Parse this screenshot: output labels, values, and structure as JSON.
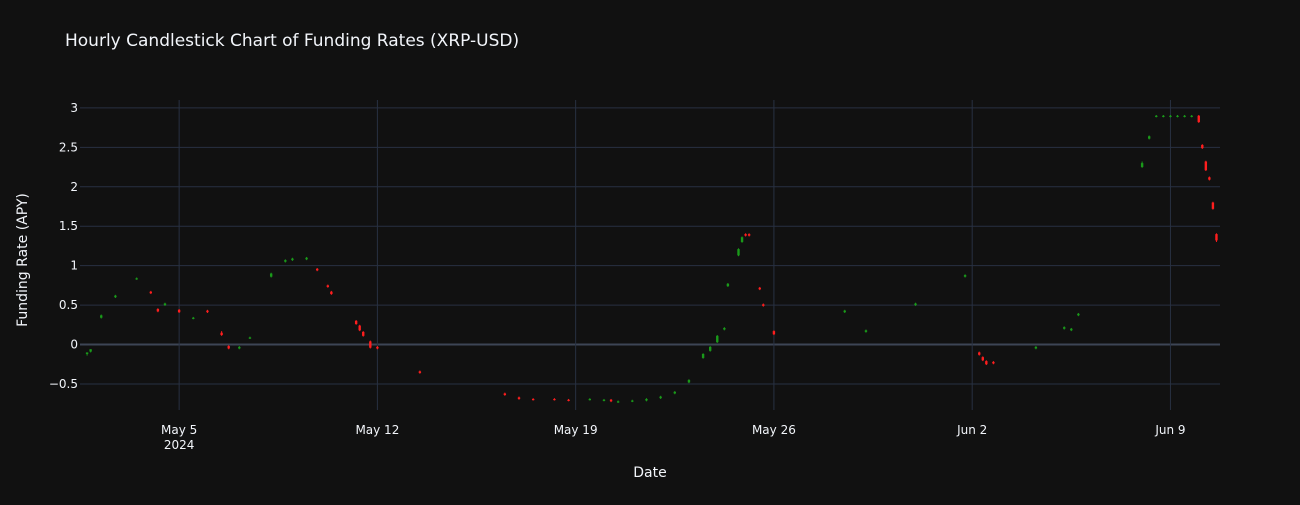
{
  "chart_data": {
    "type": "candlestick",
    "title": "Hourly Candlestick Chart of Funding Rates (XRP-USD)",
    "xlabel": "Date",
    "ylabel": "Funding Rate (APY)",
    "x_tick_labels": [
      {
        "value": "2024-05-05",
        "label": "May 5",
        "sublabel": "2024"
      },
      {
        "value": "2024-05-12",
        "label": "May 12",
        "sublabel": ""
      },
      {
        "value": "2024-05-19",
        "label": "May 19",
        "sublabel": ""
      },
      {
        "value": "2024-05-26",
        "label": "May 26",
        "sublabel": ""
      },
      {
        "value": "2024-06-02",
        "label": "Jun 2",
        "sublabel": ""
      },
      {
        "value": "2024-06-09",
        "label": "Jun 9",
        "sublabel": ""
      }
    ],
    "y_ticks": [
      {
        "value": -0.5,
        "label": "−0.5"
      },
      {
        "value": 0,
        "label": "0"
      },
      {
        "value": 0.5,
        "label": "0.5"
      },
      {
        "value": 1,
        "label": "1"
      },
      {
        "value": 1.5,
        "label": "1.5"
      },
      {
        "value": 2,
        "label": "2"
      },
      {
        "value": 2.5,
        "label": "2.5"
      },
      {
        "value": 3,
        "label": "3"
      }
    ],
    "xlim": [
      "2024-05-01T12:00",
      "2024-06-10T18:00"
    ],
    "ylim": [
      -0.83,
      3.1
    ],
    "grid": true,
    "legend": "none",
    "colors": {
      "increasing": "#1a9a1a",
      "decreasing": "#ff1e1e",
      "grid": "#283142",
      "zero_line": "#3d4555"
    },
    "candles": [
      {
        "t": "2024-05-01T18:00",
        "o": -0.12,
        "h": -0.1,
        "l": -0.14,
        "c": -0.1
      },
      {
        "t": "2024-05-01T21:00",
        "o": -0.09,
        "h": -0.06,
        "l": -0.1,
        "c": -0.06
      },
      {
        "t": "2024-05-02T06:00",
        "o": 0.34,
        "h": 0.38,
        "l": 0.33,
        "c": 0.37
      },
      {
        "t": "2024-05-02T18:00",
        "o": 0.6,
        "h": 0.63,
        "l": 0.59,
        "c": 0.62
      },
      {
        "t": "2024-05-03T12:00",
        "o": 0.83,
        "h": 0.85,
        "l": 0.82,
        "c": 0.84
      },
      {
        "t": "2024-05-04T00:00",
        "o": 0.67,
        "h": 0.68,
        "l": 0.64,
        "c": 0.65
      },
      {
        "t": "2024-05-04T06:00",
        "o": 0.45,
        "h": 0.46,
        "l": 0.41,
        "c": 0.42
      },
      {
        "t": "2024-05-04T12:00",
        "o": 0.5,
        "h": 0.53,
        "l": 0.49,
        "c": 0.52
      },
      {
        "t": "2024-05-05T00:00",
        "o": 0.44,
        "h": 0.45,
        "l": 0.4,
        "c": 0.41
      },
      {
        "t": "2024-05-05T12:00",
        "o": 0.33,
        "h": 0.35,
        "l": 0.32,
        "c": 0.34
      },
      {
        "t": "2024-05-06T00:00",
        "o": 0.43,
        "h": 0.44,
        "l": 0.4,
        "c": 0.41
      },
      {
        "t": "2024-05-06T12:00",
        "o": 0.15,
        "h": 0.17,
        "l": 0.11,
        "c": 0.12
      },
      {
        "t": "2024-05-06T18:00",
        "o": -0.02,
        "h": -0.01,
        "l": -0.06,
        "c": -0.05
      },
      {
        "t": "2024-05-07T03:00",
        "o": -0.05,
        "h": -0.02,
        "l": -0.06,
        "c": -0.03
      },
      {
        "t": "2024-05-07T12:00",
        "o": 0.08,
        "h": 0.1,
        "l": 0.07,
        "c": 0.09
      },
      {
        "t": "2024-05-08T06:00",
        "o": 0.86,
        "h": 0.91,
        "l": 0.85,
        "c": 0.9
      },
      {
        "t": "2024-05-08T18:00",
        "o": 1.05,
        "h": 1.08,
        "l": 1.04,
        "c": 1.07
      },
      {
        "t": "2024-05-09T00:00",
        "o": 1.07,
        "h": 1.1,
        "l": 1.06,
        "c": 1.09
      },
      {
        "t": "2024-05-09T12:00",
        "o": 1.08,
        "h": 1.11,
        "l": 1.07,
        "c": 1.1
      },
      {
        "t": "2024-05-09T21:00",
        "o": 0.96,
        "h": 0.97,
        "l": 0.93,
        "c": 0.94
      },
      {
        "t": "2024-05-10T06:00",
        "o": 0.75,
        "h": 0.76,
        "l": 0.72,
        "c": 0.73
      },
      {
        "t": "2024-05-10T09:00",
        "o": 0.67,
        "h": 0.68,
        "l": 0.63,
        "c": 0.64
      },
      {
        "t": "2024-05-11T06:00",
        "o": 0.3,
        "h": 0.31,
        "l": 0.25,
        "c": 0.26
      },
      {
        "t": "2024-05-11T09:00",
        "o": 0.24,
        "h": 0.25,
        "l": 0.17,
        "c": 0.18
      },
      {
        "t": "2024-05-11T12:00",
        "o": 0.16,
        "h": 0.17,
        "l": 0.1,
        "c": 0.11
      },
      {
        "t": "2024-05-11T18:00",
        "o": 0.04,
        "h": 0.05,
        "l": -0.05,
        "c": -0.04
      },
      {
        "t": "2024-05-12T00:00",
        "o": -0.03,
        "h": -0.02,
        "l": -0.06,
        "c": -0.05
      },
      {
        "t": "2024-05-13T12:00",
        "o": -0.34,
        "h": -0.33,
        "l": -0.37,
        "c": -0.36
      },
      {
        "t": "2024-05-16T12:00",
        "o": -0.62,
        "h": -0.61,
        "l": -0.65,
        "c": -0.64
      },
      {
        "t": "2024-05-17T00:00",
        "o": -0.67,
        "h": -0.66,
        "l": -0.7,
        "c": -0.69
      },
      {
        "t": "2024-05-17T12:00",
        "o": -0.69,
        "h": -0.68,
        "l": -0.71,
        "c": -0.7
      },
      {
        "t": "2024-05-18T06:00",
        "o": -0.69,
        "h": -0.68,
        "l": -0.71,
        "c": -0.7
      },
      {
        "t": "2024-05-18T18:00",
        "o": -0.7,
        "h": -0.69,
        "l": -0.72,
        "c": -0.71
      },
      {
        "t": "2024-05-19T12:00",
        "o": -0.7,
        "h": -0.68,
        "l": -0.71,
        "c": -0.69
      },
      {
        "t": "2024-05-20T00:00",
        "o": -0.71,
        "h": -0.69,
        "l": -0.72,
        "c": -0.7
      },
      {
        "t": "2024-05-20T06:00",
        "o": -0.7,
        "h": -0.69,
        "l": -0.73,
        "c": -0.72
      },
      {
        "t": "2024-05-20T12:00",
        "o": -0.73,
        "h": -0.71,
        "l": -0.74,
        "c": -0.72
      },
      {
        "t": "2024-05-21T00:00",
        "o": -0.72,
        "h": -0.7,
        "l": -0.73,
        "c": -0.71
      },
      {
        "t": "2024-05-21T12:00",
        "o": -0.71,
        "h": -0.68,
        "l": -0.72,
        "c": -0.69
      },
      {
        "t": "2024-05-22T00:00",
        "o": -0.68,
        "h": -0.65,
        "l": -0.69,
        "c": -0.66
      },
      {
        "t": "2024-05-22T12:00",
        "o": -0.62,
        "h": -0.59,
        "l": -0.63,
        "c": -0.6
      },
      {
        "t": "2024-05-23T00:00",
        "o": -0.48,
        "h": -0.44,
        "l": -0.49,
        "c": -0.45
      },
      {
        "t": "2024-05-23T12:00",
        "o": -0.17,
        "h": -0.11,
        "l": -0.18,
        "c": -0.12
      },
      {
        "t": "2024-05-23T18:00",
        "o": -0.08,
        "h": -0.02,
        "l": -0.09,
        "c": -0.03
      },
      {
        "t": "2024-05-24T00:00",
        "o": 0.03,
        "h": 0.12,
        "l": 0.02,
        "c": 0.11
      },
      {
        "t": "2024-05-24T06:00",
        "o": 0.19,
        "h": 0.22,
        "l": 0.18,
        "c": 0.21
      },
      {
        "t": "2024-05-24T09:00",
        "o": 0.74,
        "h": 0.78,
        "l": 0.73,
        "c": 0.77
      },
      {
        "t": "2024-05-24T18:00",
        "o": 1.13,
        "h": 1.22,
        "l": 1.12,
        "c": 1.21
      },
      {
        "t": "2024-05-24T21:00",
        "o": 1.3,
        "h": 1.37,
        "l": 1.29,
        "c": 1.36
      },
      {
        "t": "2024-05-25T00:00",
        "o": 1.4,
        "h": 1.41,
        "l": 1.37,
        "c": 1.38
      },
      {
        "t": "2024-05-25T03:00",
        "o": 1.4,
        "h": 1.41,
        "l": 1.37,
        "c": 1.38
      },
      {
        "t": "2024-05-25T12:00",
        "o": 0.72,
        "h": 0.73,
        "l": 0.69,
        "c": 0.7
      },
      {
        "t": "2024-05-25T15:00",
        "o": 0.51,
        "h": 0.52,
        "l": 0.48,
        "c": 0.49
      },
      {
        "t": "2024-05-26T00:00",
        "o": 0.17,
        "h": 0.18,
        "l": 0.12,
        "c": 0.13
      },
      {
        "t": "2024-05-28T12:00",
        "o": 0.41,
        "h": 0.44,
        "l": 0.4,
        "c": 0.43
      },
      {
        "t": "2024-05-29T06:00",
        "o": 0.16,
        "h": 0.19,
        "l": 0.15,
        "c": 0.18
      },
      {
        "t": "2024-05-31T00:00",
        "o": 0.5,
        "h": 0.53,
        "l": 0.49,
        "c": 0.52
      },
      {
        "t": "2024-06-01T18:00",
        "o": 0.86,
        "h": 0.89,
        "l": 0.85,
        "c": 0.88
      },
      {
        "t": "2024-06-02T06:00",
        "o": -0.1,
        "h": -0.09,
        "l": -0.14,
        "c": -0.13
      },
      {
        "t": "2024-06-02T09:00",
        "o": -0.16,
        "h": -0.15,
        "l": -0.21,
        "c": -0.2
      },
      {
        "t": "2024-06-02T12:00",
        "o": -0.21,
        "h": -0.2,
        "l": -0.26,
        "c": -0.25
      },
      {
        "t": "2024-06-02T18:00",
        "o": -0.22,
        "h": -0.21,
        "l": -0.25,
        "c": -0.24
      },
      {
        "t": "2024-06-04T06:00",
        "o": -0.05,
        "h": -0.02,
        "l": -0.06,
        "c": -0.03
      },
      {
        "t": "2024-06-05T06:00",
        "o": 0.2,
        "h": 0.23,
        "l": 0.19,
        "c": 0.22
      },
      {
        "t": "2024-06-05T12:00",
        "o": 0.18,
        "h": 0.21,
        "l": 0.17,
        "c": 0.2
      },
      {
        "t": "2024-06-05T18:00",
        "o": 0.37,
        "h": 0.4,
        "l": 0.36,
        "c": 0.39
      },
      {
        "t": "2024-06-08T00:00",
        "o": 2.25,
        "h": 2.32,
        "l": 2.24,
        "c": 2.3
      },
      {
        "t": "2024-06-08T06:00",
        "o": 2.61,
        "h": 2.65,
        "l": 2.6,
        "c": 2.64
      },
      {
        "t": "2024-06-08T12:00",
        "o": 2.89,
        "h": 2.91,
        "l": 2.88,
        "c": 2.9
      },
      {
        "t": "2024-06-08T18:00",
        "o": 2.89,
        "h": 2.91,
        "l": 2.88,
        "c": 2.9
      },
      {
        "t": "2024-06-09T00:00",
        "o": 2.89,
        "h": 2.91,
        "l": 2.88,
        "c": 2.9
      },
      {
        "t": "2024-06-09T06:00",
        "o": 2.89,
        "h": 2.91,
        "l": 2.88,
        "c": 2.9
      },
      {
        "t": "2024-06-09T12:00",
        "o": 2.89,
        "h": 2.91,
        "l": 2.88,
        "c": 2.9
      },
      {
        "t": "2024-06-09T18:00",
        "o": 2.89,
        "h": 2.91,
        "l": 2.88,
        "c": 2.9
      },
      {
        "t": "2024-06-10T00:00",
        "o": 2.9,
        "h": 2.91,
        "l": 2.81,
        "c": 2.82
      },
      {
        "t": "2024-06-10T03:00",
        "o": 2.53,
        "h": 2.54,
        "l": 2.48,
        "c": 2.49
      },
      {
        "t": "2024-06-10T06:00",
        "o": 2.32,
        "h": 2.33,
        "l": 2.2,
        "c": 2.21
      },
      {
        "t": "2024-06-10T09:00",
        "o": 2.12,
        "h": 2.13,
        "l": 2.08,
        "c": 2.09
      },
      {
        "t": "2024-06-10T12:00",
        "o": 1.8,
        "h": 1.81,
        "l": 1.71,
        "c": 1.72
      },
      {
        "t": "2024-06-10T15:00",
        "o": 1.4,
        "h": 1.41,
        "l": 1.3,
        "c": 1.32
      }
    ]
  }
}
